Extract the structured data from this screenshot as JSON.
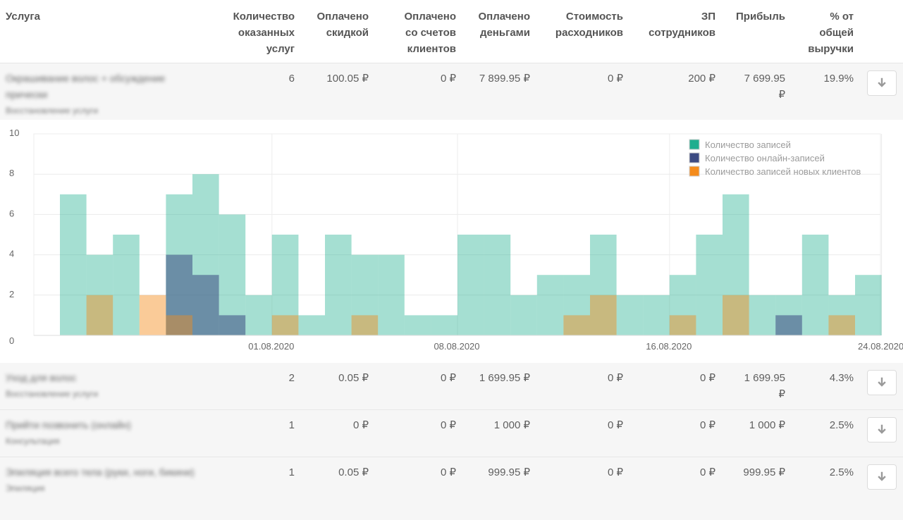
{
  "table": {
    "headers": {
      "service": "Услуга",
      "count_l1": "Количество",
      "count_l2": "оказанных",
      "count_l3": "услуг",
      "discount_l1": "Оплачено",
      "discount_l2": "скидкой",
      "accounts_l1": "Оплачено",
      "accounts_l2": "со счетов",
      "accounts_l3": "клиентов",
      "money_l1": "Оплачено",
      "money_l2": "деньгами",
      "supplies_l1": "Стоимость",
      "supplies_l2": "расходников",
      "salary_l1": "ЗП",
      "salary_l2": "сотрудников",
      "profit": "Прибыль",
      "share_l1": "% от",
      "share_l2": "общей",
      "share_l3": "выручки"
    },
    "rows": [
      {
        "name": "Окрашивание волос + обсуждение прически",
        "category": "Восстановление услуги",
        "count": "6",
        "discount": "100.05 ₽",
        "accounts": "0 ₽",
        "money": "7 899.95 ₽",
        "supplies": "0 ₽",
        "salary": "200 ₽",
        "profit_l1": "7 699.95",
        "profit_l2": "₽",
        "share": "19.9%",
        "action_icon": "arrow-down-icon"
      },
      {
        "name": "Уход для волос",
        "category": "Восстановление услуги",
        "count": "2",
        "discount": "0.05 ₽",
        "accounts": "0 ₽",
        "money": "1 699.95 ₽",
        "supplies": "0 ₽",
        "salary": "0 ₽",
        "profit_l1": "1 699.95",
        "profit_l2": "₽",
        "share": "4.3%",
        "action_icon": "arrow-down-icon"
      },
      {
        "name": "Прийти позвонить (онлайн)",
        "category": "Консультация",
        "count": "1",
        "discount": "0 ₽",
        "accounts": "0 ₽",
        "money": "1 000 ₽",
        "supplies": "0 ₽",
        "salary": "0 ₽",
        "profit_l1": "1 000 ₽",
        "profit_l2": "",
        "share": "2.5%",
        "action_icon": "arrow-down-icon"
      },
      {
        "name": "Эпиляция всего тела (руки, ноги, бикини)",
        "category": "Эпиляция",
        "count": "1",
        "discount": "0.05 ₽",
        "accounts": "0 ₽",
        "money": "999.95 ₽",
        "supplies": "0 ₽",
        "salary": "0 ₽",
        "profit_l1": "999.95 ₽",
        "profit_l2": "",
        "share": "2.5%",
        "action_icon": "arrow-down-icon"
      }
    ]
  },
  "chart_data": {
    "type": "bar",
    "ylim": [
      0,
      10
    ],
    "yticks": [
      "10",
      "8",
      "6",
      "4",
      "2",
      "0"
    ],
    "xtick_labels": [
      "01.08.2020",
      "08.08.2020",
      "16.08.2020",
      "24.08.2020"
    ],
    "legend_position": "top-right",
    "grid": true,
    "days": [
      "2020-07-24",
      "2020-07-25",
      "2020-07-26",
      "2020-07-27",
      "2020-07-28",
      "2020-07-29",
      "2020-07-30",
      "2020-07-31",
      "2020-08-01",
      "2020-08-02",
      "2020-08-03",
      "2020-08-04",
      "2020-08-05",
      "2020-08-06",
      "2020-08-07",
      "2020-08-08",
      "2020-08-09",
      "2020-08-10",
      "2020-08-11",
      "2020-08-12",
      "2020-08-13",
      "2020-08-14",
      "2020-08-15",
      "2020-08-16",
      "2020-08-17",
      "2020-08-18",
      "2020-08-19",
      "2020-08-20",
      "2020-08-21",
      "2020-08-22",
      "2020-08-23",
      "2020-08-24"
    ],
    "series": [
      {
        "name": "Количество записей",
        "color": "#1fae8f",
        "values": [
          7,
          4,
          5,
          0,
          7,
          8,
          6,
          2,
          5,
          1,
          5,
          4,
          4,
          1,
          1,
          5,
          5,
          2,
          3,
          3,
          5,
          2,
          2,
          3,
          5,
          7,
          2,
          2,
          5,
          2,
          3,
          0
        ]
      },
      {
        "name": "Количество онлайн-записей",
        "color": "#3c4a82",
        "values": [
          0,
          0,
          0,
          0,
          4,
          3,
          1,
          0,
          0,
          0,
          0,
          0,
          0,
          0,
          0,
          0,
          0,
          0,
          0,
          0,
          0,
          0,
          0,
          0,
          0,
          0,
          0,
          1,
          0,
          0,
          0,
          0
        ]
      },
      {
        "name": "Количество записей новых клиентов",
        "color": "#f48b1b",
        "values": [
          0,
          2,
          0,
          2,
          1,
          0,
          0,
          0,
          1,
          0,
          0,
          1,
          0,
          0,
          0,
          0,
          0,
          0,
          0,
          1,
          2,
          0,
          0,
          1,
          0,
          2,
          0,
          0,
          0,
          1,
          0,
          0
        ]
      }
    ]
  }
}
